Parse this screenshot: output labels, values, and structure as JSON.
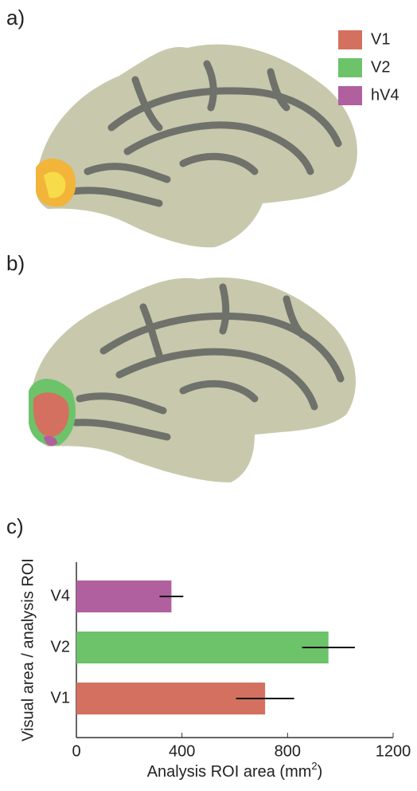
{
  "panels": {
    "a": "a)",
    "b": "b)",
    "c": "c)"
  },
  "legend": [
    {
      "label": "V1",
      "color": "#d4705f"
    },
    {
      "label": "V2",
      "color": "#6cc36a"
    },
    {
      "label": "hV4",
      "color": "#b0609f"
    }
  ],
  "chart_data": {
    "type": "hbar",
    "categories": [
      "V4",
      "V2",
      "V1"
    ],
    "values": [
      360,
      955,
      715
    ],
    "errors": [
      45,
      100,
      110
    ],
    "colors": [
      "#b0609f",
      "#6cc36a",
      "#d4705f"
    ],
    "xlim": [
      0,
      1200
    ],
    "xticks": [
      0,
      400,
      800,
      1200
    ],
    "xlabel_parts": [
      "Analysis ROI area (mm",
      "2",
      ")"
    ],
    "ylabel": "Visual area / analysis ROI"
  }
}
